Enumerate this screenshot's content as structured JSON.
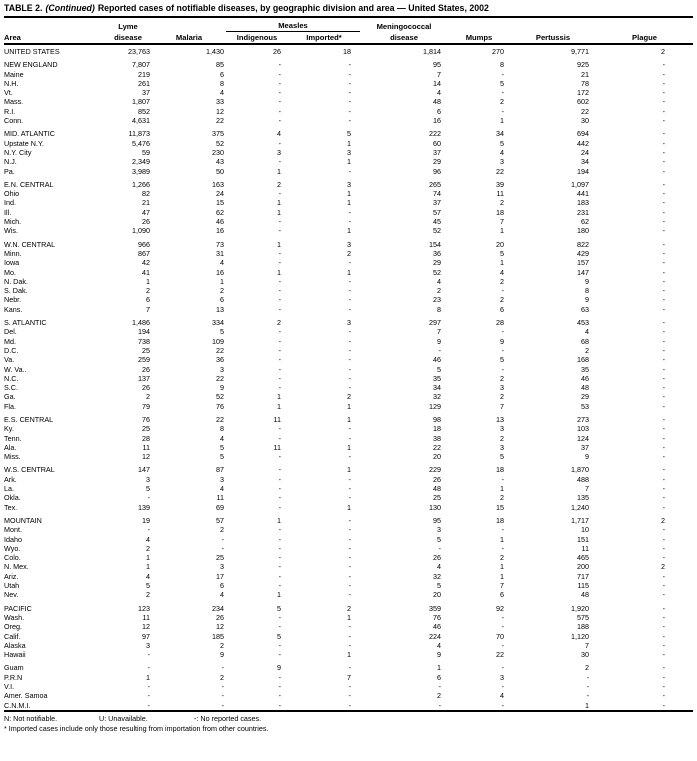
{
  "title": {
    "prefix": "TABLE 2.",
    "continued": "(Continued)",
    "rest": "Reported cases of notifiable diseases, by geographic division and area — United States, 2002"
  },
  "header": {
    "area": "Area",
    "lyme_top": "Lyme",
    "lyme_bottom": "disease",
    "malaria": "Malaria",
    "measles_group": "Measles",
    "indigenous": "Indigenous",
    "imported": "Imported*",
    "meningococcal_top": "Meningococcal",
    "meningococcal_bottom": "disease",
    "mumps": "Mumps",
    "pertussis": "Pertussis",
    "plague": "Plague"
  },
  "table": {
    "groups": [
      {
        "rows": [
          [
            "UNITED STATES",
            "23,763",
            "1,430",
            "26",
            "18",
            "1,814",
            "270",
            "9,771",
            "2"
          ]
        ]
      },
      {
        "rows": [
          [
            "NEW ENGLAND",
            "7,807",
            "85",
            "-",
            "-",
            "95",
            "8",
            "925",
            "-"
          ],
          [
            "Maine",
            "219",
            "6",
            "-",
            "-",
            "7",
            "-",
            "21",
            "-"
          ],
          [
            "N.H.",
            "261",
            "8",
            "-",
            "-",
            "14",
            "5",
            "78",
            "-"
          ],
          [
            "Vt.",
            "37",
            "4",
            "-",
            "-",
            "4",
            "-",
            "172",
            "-"
          ],
          [
            "Mass.",
            "1,807",
            "33",
            "-",
            "-",
            "48",
            "2",
            "602",
            "-"
          ],
          [
            "R.I.",
            "852",
            "12",
            "-",
            "-",
            "6",
            "-",
            "22",
            "-"
          ],
          [
            "Conn.",
            "4,631",
            "22",
            "-",
            "-",
            "16",
            "1",
            "30",
            "-"
          ]
        ]
      },
      {
        "rows": [
          [
            "MID. ATLANTIC",
            "11,873",
            "375",
            "4",
            "5",
            "222",
            "34",
            "694",
            "-"
          ],
          [
            "Upstate N.Y.",
            "5,476",
            "52",
            "-",
            "1",
            "60",
            "5",
            "442",
            "-"
          ],
          [
            "N.Y. City",
            "59",
            "230",
            "3",
            "3",
            "37",
            "4",
            "24",
            "-"
          ],
          [
            "N.J.",
            "2,349",
            "43",
            "-",
            "1",
            "29",
            "3",
            "34",
            "-"
          ],
          [
            "Pa.",
            "3,989",
            "50",
            "1",
            "-",
            "96",
            "22",
            "194",
            "-"
          ]
        ]
      },
      {
        "rows": [
          [
            "E.N. CENTRAL",
            "1,266",
            "163",
            "2",
            "3",
            "265",
            "39",
            "1,097",
            "-"
          ],
          [
            "Ohio",
            "82",
            "24",
            "-",
            "1",
            "74",
            "11",
            "441",
            "-"
          ],
          [
            "Ind.",
            "21",
            "15",
            "1",
            "1",
            "37",
            "2",
            "183",
            "-"
          ],
          [
            "Ill.",
            "47",
            "62",
            "1",
            "-",
            "57",
            "18",
            "231",
            "-"
          ],
          [
            "Mich.",
            "26",
            "46",
            "-",
            "-",
            "45",
            "7",
            "62",
            "-"
          ],
          [
            "Wis.",
            "1,090",
            "16",
            "-",
            "1",
            "52",
            "1",
            "180",
            "-"
          ]
        ]
      },
      {
        "rows": [
          [
            "W.N. CENTRAL",
            "966",
            "73",
            "1",
            "3",
            "154",
            "20",
            "822",
            "-"
          ],
          [
            "Minn.",
            "867",
            "31",
            "-",
            "2",
            "36",
            "5",
            "429",
            "-"
          ],
          [
            "Iowa",
            "42",
            "4",
            "-",
            "-",
            "29",
            "1",
            "157",
            "-"
          ],
          [
            "Mo.",
            "41",
            "16",
            "1",
            "1",
            "52",
            "4",
            "147",
            "-"
          ],
          [
            "N. Dak.",
            "1",
            "1",
            "-",
            "-",
            "4",
            "2",
            "9",
            "-"
          ],
          [
            "S. Dak.",
            "2",
            "2",
            "-",
            "-",
            "2",
            "-",
            "8",
            "-"
          ],
          [
            "Nebr.",
            "6",
            "6",
            "-",
            "-",
            "23",
            "2",
            "9",
            "-"
          ],
          [
            "Kans.",
            "7",
            "13",
            "-",
            "-",
            "8",
            "6",
            "63",
            "-"
          ]
        ]
      },
      {
        "rows": [
          [
            "S. ATLANTIC",
            "1,486",
            "334",
            "2",
            "3",
            "297",
            "28",
            "453",
            "-"
          ],
          [
            "Del.",
            "194",
            "5",
            "-",
            "-",
            "7",
            "-",
            "4",
            "-"
          ],
          [
            "Md.",
            "738",
            "109",
            "-",
            "-",
            "9",
            "9",
            "68",
            "-"
          ],
          [
            "D.C.",
            "25",
            "22",
            "-",
            "-",
            "-",
            "-",
            "2",
            "-"
          ],
          [
            "Va.",
            "259",
            "36",
            "-",
            "-",
            "46",
            "5",
            "168",
            "-"
          ],
          [
            "W. Va..",
            "26",
            "3",
            "-",
            "-",
            "5",
            "-",
            "35",
            "-"
          ],
          [
            "N.C.",
            "137",
            "22",
            "-",
            "-",
            "35",
            "2",
            "46",
            "-"
          ],
          [
            "S.C.",
            "26",
            "9",
            "-",
            "-",
            "34",
            "3",
            "48",
            "-"
          ],
          [
            "Ga.",
            "2",
            "52",
            "1",
            "2",
            "32",
            "2",
            "29",
            "-"
          ],
          [
            "Fla.",
            "79",
            "76",
            "1",
            "1",
            "129",
            "7",
            "53",
            "-"
          ]
        ]
      },
      {
        "rows": [
          [
            "E.S. CENTRAL",
            "76",
            "22",
            "11",
            "1",
            "98",
            "13",
            "273",
            "-"
          ],
          [
            "Ky.",
            "25",
            "8",
            "-",
            "-",
            "18",
            "3",
            "103",
            "-"
          ],
          [
            "Tenn.",
            "28",
            "4",
            "-",
            "-",
            "38",
            "2",
            "124",
            "-"
          ],
          [
            "Ala.",
            "11",
            "5",
            "11",
            "1",
            "22",
            "3",
            "37",
            "-"
          ],
          [
            "Miss.",
            "12",
            "5",
            "-",
            "-",
            "20",
            "5",
            "9",
            "-"
          ]
        ]
      },
      {
        "rows": [
          [
            "W.S. CENTRAL",
            "147",
            "87",
            "-",
            "1",
            "229",
            "18",
            "1,870",
            "-"
          ],
          [
            "Ark.",
            "3",
            "3",
            "-",
            "-",
            "26",
            "-",
            "488",
            "-"
          ],
          [
            "La.",
            "5",
            "4",
            "-",
            "-",
            "48",
            "1",
            "7",
            "-"
          ],
          [
            "Okla.",
            "-",
            "11",
            "-",
            "-",
            "25",
            "2",
            "135",
            "-"
          ],
          [
            "Tex.",
            "139",
            "69",
            "-",
            "1",
            "130",
            "15",
            "1,240",
            "-"
          ]
        ]
      },
      {
        "rows": [
          [
            "MOUNTAIN",
            "19",
            "57",
            "1",
            "-",
            "95",
            "18",
            "1,717",
            "2"
          ],
          [
            "Mont.",
            "-",
            "2",
            "-",
            "-",
            "3",
            "-",
            "10",
            "-"
          ],
          [
            "Idaho",
            "4",
            "-",
            "-",
            "-",
            "5",
            "1",
            "151",
            "-"
          ],
          [
            "Wyo.",
            "2",
            "-",
            "-",
            "-",
            "-",
            "-",
            "11",
            "-"
          ],
          [
            "Colo.",
            "1",
            "25",
            "-",
            "-",
            "26",
            "2",
            "465",
            "-"
          ],
          [
            "N. Mex.",
            "1",
            "3",
            "-",
            "-",
            "4",
            "1",
            "200",
            "2"
          ],
          [
            "Ariz.",
            "4",
            "17",
            "-",
            "-",
            "32",
            "1",
            "717",
            "-"
          ],
          [
            "Utah",
            "5",
            "6",
            "-",
            "-",
            "5",
            "7",
            "115",
            "-"
          ],
          [
            "Nev.",
            "2",
            "4",
            "1",
            "-",
            "20",
            "6",
            "48",
            "-"
          ]
        ]
      },
      {
        "rows": [
          [
            "PACIFIC",
            "123",
            "234",
            "5",
            "2",
            "359",
            "92",
            "1,920",
            "-"
          ],
          [
            "Wash.",
            "11",
            "26",
            "-",
            "1",
            "76",
            "-",
            "575",
            "-"
          ],
          [
            "Oreg.",
            "12",
            "12",
            "-",
            "-",
            "46",
            "-",
            "188",
            "-"
          ],
          [
            "Calif.",
            "97",
            "185",
            "5",
            "-",
            "224",
            "70",
            "1,120",
            "-"
          ],
          [
            "Alaska",
            "3",
            "2",
            "-",
            "-",
            "4",
            "-",
            "7",
            "-"
          ],
          [
            "Hawaii",
            "-",
            "9",
            "-",
            "1",
            "9",
            "22",
            "30",
            "-"
          ]
        ]
      },
      {
        "rows": [
          [
            "Guam",
            "-",
            "-",
            "9",
            "-",
            "1",
            "-",
            "2",
            "-"
          ],
          [
            "P.R.N",
            "1",
            "2",
            "-",
            "7",
            "6",
            "3",
            "-",
            "-"
          ],
          [
            "V.I.",
            "-",
            "-",
            "-",
            "-",
            "-",
            "-",
            "-",
            "-"
          ],
          [
            "Amer. Samoa",
            "-",
            "-",
            "-",
            "-",
            "2",
            "4",
            "-",
            "-"
          ],
          [
            "C.N.M.I.",
            "-",
            "-",
            "-",
            "-",
            "-",
            "-",
            "1",
            "-"
          ]
        ]
      }
    ]
  },
  "footnotes": {
    "line1": [
      "N: Not notifiable.",
      "U: Unavailable.",
      "-: No reported cases."
    ],
    "line2": "* Imported cases include only those resulting from importation from other countries."
  }
}
